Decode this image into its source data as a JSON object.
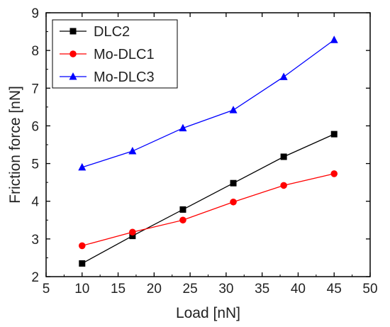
{
  "chart_data": {
    "type": "line",
    "xlabel": "Load [nN]",
    "ylabel": "Friction force [nN]",
    "xlim": [
      5,
      50
    ],
    "ylim": [
      2,
      9
    ],
    "xticks": [
      5,
      10,
      15,
      20,
      25,
      30,
      35,
      40,
      45,
      50
    ],
    "yticks": [
      2,
      3,
      4,
      5,
      6,
      7,
      8,
      9
    ],
    "x": [
      10,
      17,
      24,
      31,
      38,
      45
    ],
    "grid": false,
    "legend_position": "top-left",
    "series": [
      {
        "name": "DLC2",
        "color": "#000000",
        "marker": "square",
        "values": [
          2.35,
          3.08,
          3.78,
          4.48,
          5.18,
          5.78
        ]
      },
      {
        "name": "Mo-DLC1",
        "color": "#ff0000",
        "marker": "circle",
        "values": [
          2.82,
          3.18,
          3.5,
          3.98,
          4.42,
          4.73
        ]
      },
      {
        "name": "Mo-DLC3",
        "color": "#0000ff",
        "marker": "triangle",
        "values": [
          4.9,
          5.33,
          5.94,
          6.42,
          7.3,
          8.28
        ]
      }
    ]
  }
}
